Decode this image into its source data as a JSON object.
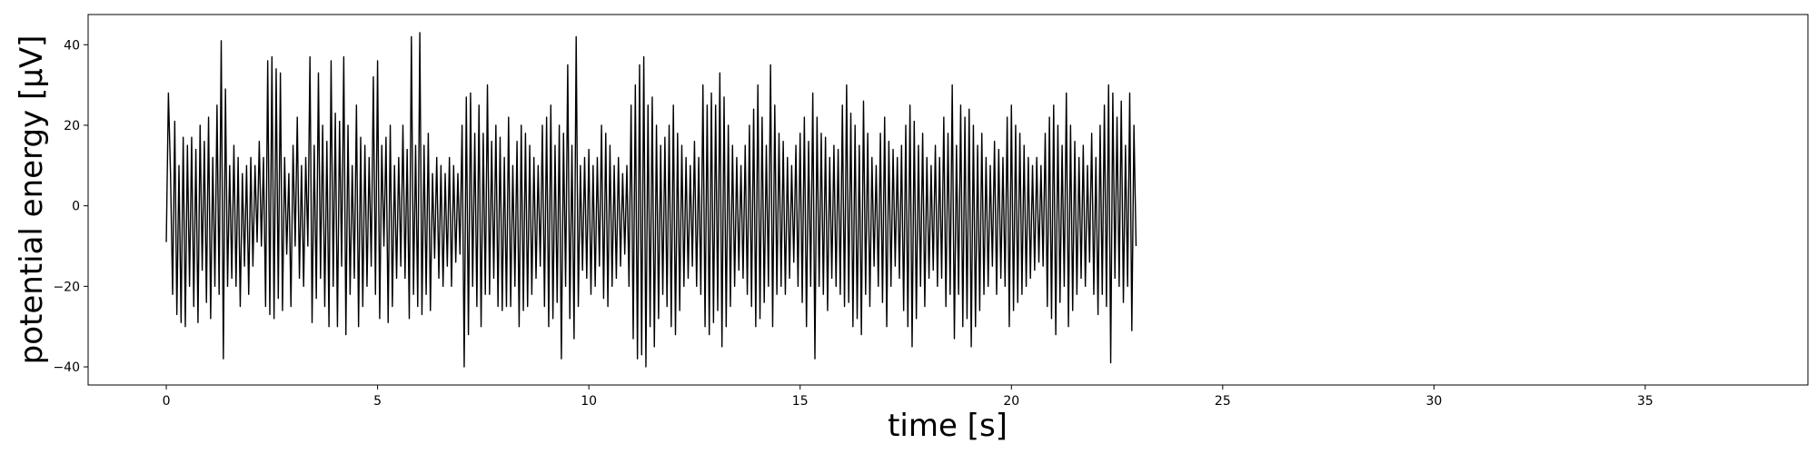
{
  "chart_data": {
    "type": "line",
    "xlabel": "time [s]",
    "ylabel": "potential energy [μV]",
    "xlim": [
      -1.85,
      38.85
    ],
    "ylim": [
      -44.5,
      47.5
    ],
    "xticks": [
      0,
      5,
      10,
      15,
      20,
      25,
      30,
      35
    ],
    "xtick_labels": [
      "0",
      "5",
      "10",
      "15",
      "20",
      "25",
      "30",
      "35"
    ],
    "yticks": [
      -40,
      -20,
      0,
      20,
      40
    ],
    "ytick_labels": [
      "−40",
      "−20",
      "0",
      "20",
      "40"
    ],
    "grid": false,
    "line_color": "#000000",
    "series": [
      {
        "x_start": 0,
        "x_step": 0.05,
        "values": [
          -9,
          28,
          8,
          -22,
          21,
          -27,
          10,
          -29,
          17,
          -30,
          15,
          -20,
          17,
          -25,
          14,
          -29,
          20,
          -16,
          16,
          -24,
          22,
          -28,
          12,
          -20,
          25,
          -22,
          41,
          -38,
          29,
          -20,
          10,
          -18,
          15,
          -20,
          12,
          -25,
          8,
          -15,
          10,
          -22,
          12,
          -15,
          10,
          -9,
          16,
          -10,
          12,
          -25,
          36,
          -27,
          37,
          -28,
          34,
          -23,
          33,
          -26,
          12,
          -12,
          8,
          -25,
          15,
          -10,
          22,
          -18,
          10,
          -20,
          12,
          -10,
          37,
          -29,
          15,
          -23,
          33,
          -18,
          20,
          -25,
          16,
          -30,
          36,
          -20,
          23,
          -30,
          21,
          -15,
          37,
          -32,
          20,
          -22,
          10,
          -18,
          25,
          -30,
          17,
          -25,
          15,
          -20,
          12,
          -15,
          32,
          -22,
          36,
          -28,
          15,
          -10,
          17,
          -29,
          20,
          -25,
          10,
          -18,
          12,
          -15,
          20,
          -18,
          14,
          -28,
          42,
          -22,
          15,
          -25,
          43,
          -27,
          15,
          -22,
          18,
          -26,
          8,
          -13,
          12,
          -18,
          10,
          -20,
          8,
          -15,
          12,
          -20,
          10,
          -14,
          8,
          -12,
          20,
          -40,
          27,
          -32,
          28,
          -20,
          18,
          -25,
          25,
          -30,
          18,
          -22,
          30,
          -22,
          16,
          -18,
          20,
          -25,
          17,
          -26,
          12,
          -25,
          22,
          -25,
          10,
          -20,
          16,
          -30,
          20,
          -26,
          18,
          -25,
          15,
          -22,
          12,
          -18,
          10,
          -15,
          20,
          -25,
          22,
          -30,
          25,
          -28,
          15,
          -24,
          20,
          -38,
          18,
          -20,
          35,
          -28,
          15,
          -33,
          42,
          -25,
          10,
          -16,
          12,
          -18,
          14,
          -22,
          10,
          -20,
          12,
          -15,
          20,
          -23,
          18,
          -25,
          15,
          -20,
          10,
          -18,
          12,
          -15,
          8,
          -12,
          10,
          -20,
          25,
          -33,
          30,
          -38,
          35,
          -37,
          37,
          -40,
          25,
          -30,
          27,
          -35,
          20,
          -28,
          15,
          -22,
          17,
          -25,
          20,
          -30,
          25,
          -32,
          18,
          -26,
          15,
          -20,
          12,
          -18,
          10,
          -15,
          16,
          -20,
          12,
          -22,
          30,
          -30,
          25,
          -32,
          28,
          -29,
          25,
          -26,
          33,
          -35,
          27,
          -30,
          20,
          -25,
          15,
          -20,
          12,
          -16,
          10,
          -18,
          15,
          -22,
          20,
          -25,
          24,
          -30,
          30,
          -28,
          22,
          -24,
          15,
          -20,
          35,
          -30,
          25,
          -22,
          18,
          -20,
          16,
          -22,
          12,
          -18,
          10,
          -14,
          15,
          -20,
          18,
          -24,
          22,
          -30,
          16,
          -20,
          28,
          -38,
          22,
          -20,
          18,
          -22,
          17,
          -26,
          12,
          -18,
          15,
          -20,
          14,
          -22,
          25,
          -25,
          30,
          -24,
          23,
          -30,
          20,
          -28,
          15,
          -32,
          26,
          -22,
          18,
          -25,
          12,
          -15,
          10,
          -20,
          18,
          -24,
          22,
          -30,
          16,
          -20,
          14,
          -15,
          12,
          -18,
          15,
          -26,
          20,
          -30,
          25,
          -35,
          21,
          -28,
          15,
          -20,
          18,
          -25,
          12,
          -18,
          10,
          -16,
          15,
          -20,
          12,
          -18,
          22,
          -25,
          18,
          -22,
          30,
          -33,
          15,
          -22,
          25,
          -30,
          22,
          -28,
          24,
          -35,
          20,
          -30,
          15,
          -26,
          18,
          -22,
          12,
          -20,
          10,
          -15,
          16,
          -22,
          14,
          -18,
          12,
          -20,
          22,
          -30,
          25,
          -26,
          20,
          -24,
          18,
          -22,
          15,
          -20,
          12,
          -18,
          10,
          -16,
          12,
          -14,
          10,
          -15,
          18,
          -25,
          22,
          -28,
          25,
          -32,
          20,
          -24,
          15,
          -20,
          28,
          -30,
          20,
          -26,
          16,
          -22,
          12,
          -18,
          15,
          -20,
          10,
          -14,
          18,
          -22,
          12,
          -27,
          20,
          -22,
          25,
          -25,
          30,
          -39,
          28,
          -18,
          22,
          -20,
          26,
          -24,
          15,
          -20,
          28,
          -31,
          20,
          -10
        ]
      }
    ]
  }
}
